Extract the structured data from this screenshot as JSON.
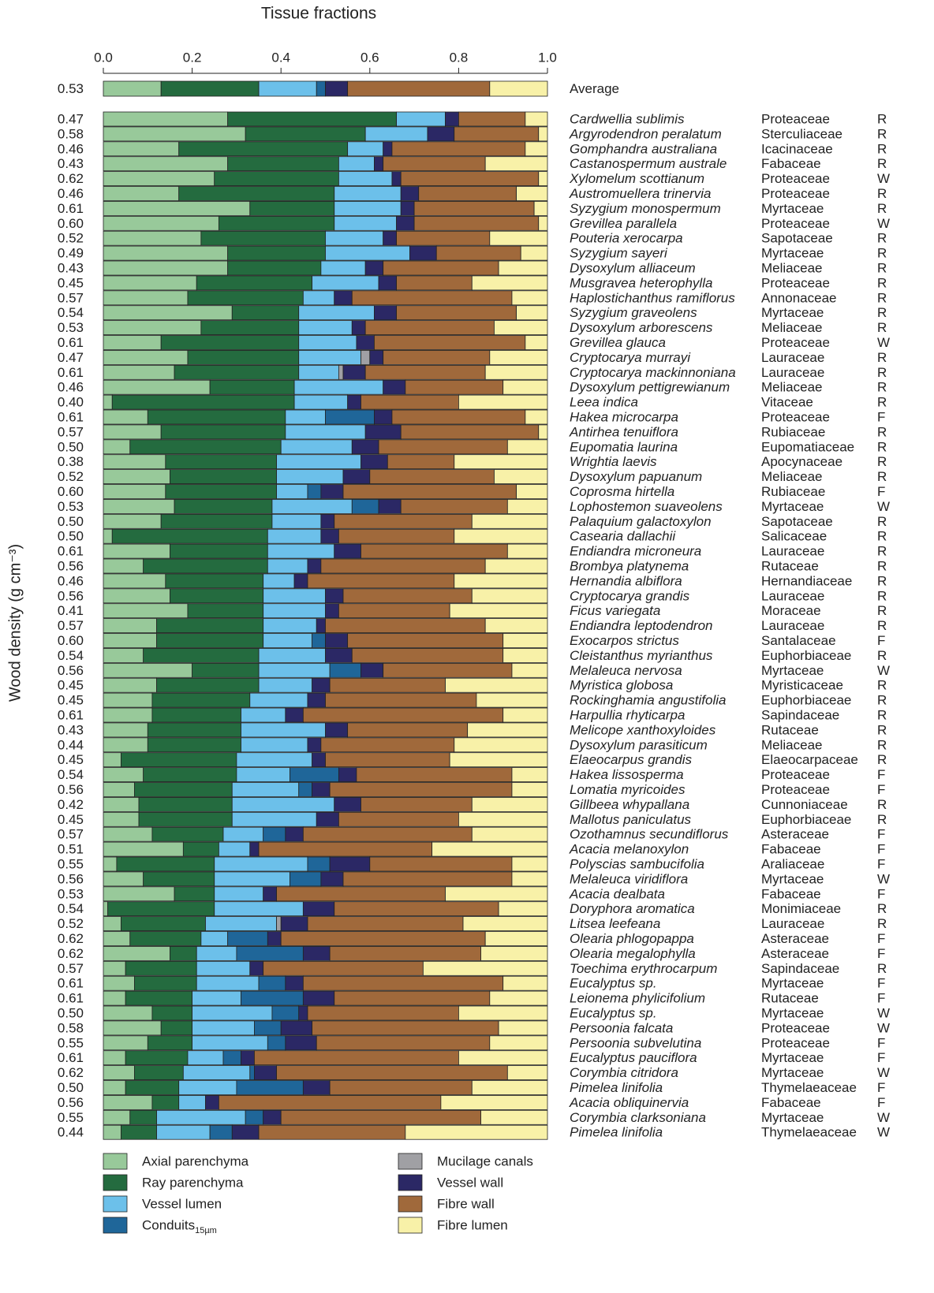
{
  "chart_data": {
    "type": "stacked-hbar",
    "title": "Tissue fractions",
    "y_label": "Wood density (g cm⁻³)",
    "xlim": [
      0,
      1
    ],
    "xticks": [
      {
        "value": 0,
        "label": "0.0"
      },
      0.2,
      0.4,
      0.6,
      0.8,
      {
        "value": 1,
        "label": "1.0"
      }
    ],
    "average": {
      "label": "Average",
      "density": "0.53",
      "values": [
        0.13,
        0.22,
        0.13,
        0.02,
        0,
        0.05,
        0.32,
        0.13
      ]
    },
    "categories": [
      "Cardwellia sublimis",
      "Argyrodendron peralatum",
      "Gomphandra australiana",
      "Castanospermum australe",
      "Xylomelum scottianum",
      "Austromuellera trinervia",
      "Syzygium monospermum",
      "Grevillea parallela",
      "Pouteria xerocarpa",
      "Syzygium sayeri",
      "Dysoxylum alliaceum",
      "Musgravea heterophylla",
      "Haplostichanthus ramiflorus",
      "Syzygium graveolens",
      "Dysoxylum arborescens",
      "Grevillea glauca",
      "Cryptocarya murrayi",
      "Cryptocarya mackinnoniana",
      "Dysoxylum pettigrewianum",
      "Leea indica",
      "Hakea microcarpa",
      "Antirhea tenuiflora",
      "Eupomatia laurina",
      "Wrightia laevis",
      "Dysoxylum papuanum",
      "Coprosma hirtella",
      "Lophostemon suaveolens",
      "Palaquium galactoxylon",
      "Casearia dallachii",
      "Endiandra microneura",
      "Brombya platynema",
      "Hernandia albiflora",
      "Cryptocarya grandis",
      "Ficus variegata",
      "Endiandra leptodendron",
      "Exocarpos strictus",
      "Cleistanthus myrianthus",
      "Melaleuca nervosa",
      "Myristica globosa",
      "Rockinghamia angustifolia",
      "Harpullia rhyticarpa",
      "Melicope xanthoxyloides",
      "Dysoxylum parasiticum",
      "Elaeocarpus grandis",
      "Hakea lissosperma",
      "Lomatia myricoides",
      "Gillbeea whypallana",
      "Mallotus paniculatus",
      "Ozothamnus secundiflorus",
      "Acacia melanoxylon",
      "Polyscias sambucifolia",
      "Melaleuca viridiflora",
      "Acacia dealbata",
      "Doryphora aromatica",
      "Litsea leefeana",
      "Olearia phlogopappa",
      "Olearia megalophylla",
      "Toechima erythrocarpum",
      "Eucalyptus sp.",
      "Leionema phylicifolium",
      "Eucalyptus sp.",
      "Persoonia falcata",
      "Persoonia subvelutina",
      "Eucalyptus pauciflora",
      "Corymbia citridora",
      "Pimelea linifolia",
      "Acacia obliquinervia",
      "Corymbia clarksoniana",
      "Pimelea linifolia"
    ],
    "families": [
      "Proteaceae",
      "Sterculiaceae",
      "Icacinaceae",
      "Fabaceae",
      "Proteaceae",
      "Proteaceae",
      "Myrtaceae",
      "Proteaceae",
      "Sapotaceae",
      "Myrtaceae",
      "Meliaceae",
      "Proteaceae",
      "Annonaceae",
      "Myrtaceae",
      "Meliaceae",
      "Proteaceae",
      "Lauraceae",
      "Lauraceae",
      "Meliaceae",
      "Vitaceae",
      "Proteaceae",
      "Rubiaceae",
      "Eupomatiaceae",
      "Apocynaceae",
      "Meliaceae",
      "Rubiaceae",
      "Myrtaceae",
      "Sapotaceae",
      "Salicaceae",
      "Lauraceae",
      "Rutaceae",
      "Hernandiaceae",
      "Lauraceae",
      "Moraceae",
      "Lauraceae",
      "Santalaceae",
      "Euphorbiaceae",
      "Myrtaceae",
      "Myristicaceae",
      "Euphorbiaceae",
      "Sapindaceae",
      "Rutaceae",
      "Meliaceae",
      "Elaeocarpaceae",
      "Proteaceae",
      "Proteaceae",
      "Cunnoniaceae",
      "Euphorbiaceae",
      "Asteraceae",
      "Fabaceae",
      "Araliaceae",
      "Myrtaceae",
      "Fabaceae",
      "Monimiaceae",
      "Lauraceae",
      "Asteraceae",
      "Asteraceae",
      "Sapindaceae",
      "Myrtaceae",
      "Rutaceae",
      "Myrtaceae",
      "Proteaceae",
      "Proteaceae",
      "Myrtaceae",
      "Myrtaceae",
      "Thymelaeaceae",
      "Fabaceae",
      "Myrtaceae",
      "Thymelaeaceae"
    ],
    "habitats": [
      "R",
      "R",
      "R",
      "R",
      "W",
      "R",
      "R",
      "W",
      "R",
      "R",
      "R",
      "R",
      "R",
      "R",
      "R",
      "W",
      "R",
      "R",
      "R",
      "R",
      "F",
      "R",
      "R",
      "R",
      "R",
      "F",
      "W",
      "R",
      "R",
      "R",
      "R",
      "R",
      "R",
      "R",
      "R",
      "F",
      "R",
      "W",
      "R",
      "R",
      "R",
      "R",
      "R",
      "R",
      "F",
      "F",
      "R",
      "R",
      "F",
      "F",
      "F",
      "W",
      "F",
      "R",
      "R",
      "F",
      "F",
      "R",
      "F",
      "F",
      "W",
      "W",
      "F",
      "F",
      "W",
      "F",
      "F",
      "W",
      "W"
    ],
    "densities": [
      "0.47",
      "0.58",
      "0.46",
      "0.43",
      "0.62",
      "0.46",
      "0.61",
      "0.60",
      "0.52",
      "0.49",
      "0.43",
      "0.45",
      "0.57",
      "0.54",
      "0.53",
      "0.61",
      "0.47",
      "0.61",
      "0.46",
      "0.40",
      "0.61",
      "0.57",
      "0.50",
      "0.38",
      "0.52",
      "0.60",
      "0.53",
      "0.50",
      "0.50",
      "0.61",
      "0.56",
      "0.46",
      "0.56",
      "0.41",
      "0.57",
      "0.60",
      "0.54",
      "0.56",
      "0.45",
      "0.45",
      "0.61",
      "0.43",
      "0.44",
      "0.45",
      "0.54",
      "0.56",
      "0.42",
      "0.45",
      "0.57",
      "0.51",
      "0.55",
      "0.56",
      "0.53",
      "0.54",
      "0.52",
      "0.62",
      "0.62",
      "0.57",
      "0.61",
      "0.61",
      "0.50",
      "0.58",
      "0.55",
      "0.61",
      "0.62",
      "0.50",
      "0.56",
      "0.55",
      "0.44"
    ],
    "series": [
      {
        "name": "Axial parenchyma",
        "color": "#98c99a",
        "values": [
          0.28,
          0.32,
          0.17,
          0.28,
          0.25,
          0.17,
          0.33,
          0.26,
          0.22,
          0.28,
          0.28,
          0.21,
          0.19,
          0.29,
          0.22,
          0.13,
          0.19,
          0.16,
          0.24,
          0.02,
          0.1,
          0.13,
          0.06,
          0.14,
          0.15,
          0.14,
          0.16,
          0.13,
          0.02,
          0.15,
          0.09,
          0.14,
          0.15,
          0.19,
          0.12,
          0.12,
          0.09,
          0.2,
          0.12,
          0.11,
          0.11,
          0.1,
          0.1,
          0.04,
          0.09,
          0.07,
          0.08,
          0.08,
          0.11,
          0.18,
          0.03,
          0.09,
          0.16,
          0.01,
          0.04,
          0.06,
          0.15,
          0.05,
          0.07,
          0.05,
          0.11,
          0.13,
          0.1,
          0.05,
          0.07,
          0.05,
          0.11,
          0.06,
          0.04
        ]
      },
      {
        "name": "Ray parenchyma",
        "color": "#246b3f",
        "values": [
          0.38,
          0.27,
          0.38,
          0.25,
          0.28,
          0.35,
          0.19,
          0.26,
          0.28,
          0.22,
          0.21,
          0.26,
          0.26,
          0.15,
          0.22,
          0.31,
          0.25,
          0.28,
          0.19,
          0.41,
          0.31,
          0.28,
          0.34,
          0.25,
          0.24,
          0.25,
          0.22,
          0.25,
          0.35,
          0.22,
          0.28,
          0.22,
          0.21,
          0.17,
          0.24,
          0.24,
          0.26,
          0.15,
          0.23,
          0.22,
          0.2,
          0.21,
          0.21,
          0.26,
          0.21,
          0.22,
          0.21,
          0.21,
          0.16,
          0.08,
          0.22,
          0.16,
          0.09,
          0.24,
          0.19,
          0.16,
          0.06,
          0.16,
          0.14,
          0.15,
          0.09,
          0.07,
          0.1,
          0.14,
          0.11,
          0.12,
          0.06,
          0.06,
          0.08
        ]
      },
      {
        "name": "Vessel lumen",
        "color": "#6cc0ea",
        "values": [
          0.11,
          0.14,
          0.08,
          0.08,
          0.12,
          0.15,
          0.15,
          0.14,
          0.13,
          0.19,
          0.1,
          0.15,
          0.07,
          0.17,
          0.12,
          0.13,
          0.14,
          0.09,
          0.2,
          0.12,
          0.09,
          0.18,
          0.16,
          0.19,
          0.15,
          0.07,
          0.18,
          0.11,
          0.12,
          0.15,
          0.09,
          0.07,
          0.14,
          0.14,
          0.12,
          0.11,
          0.15,
          0.16,
          0.12,
          0.13,
          0.1,
          0.19,
          0.15,
          0.17,
          0.12,
          0.15,
          0.23,
          0.19,
          0.09,
          0.07,
          0.21,
          0.17,
          0.11,
          0.2,
          0.16,
          0.06,
          0.09,
          0.12,
          0.14,
          0.11,
          0.18,
          0.14,
          0.17,
          0.08,
          0.15,
          0.13,
          0.06,
          0.2,
          0.12
        ]
      },
      {
        "name": "Conduits",
        "name_subscript": "15µm",
        "color": "#1f6699",
        "values": [
          0,
          0,
          0,
          0,
          0,
          0,
          0,
          0,
          0,
          0,
          0,
          0,
          0,
          0,
          0,
          0,
          0,
          0,
          0,
          0,
          0.11,
          0,
          0,
          0,
          0,
          0.03,
          0.06,
          0,
          0,
          0,
          0,
          0,
          0,
          0,
          0,
          0.03,
          0,
          0.07,
          0,
          0,
          0,
          0,
          0,
          0,
          0.11,
          0.03,
          0,
          0,
          0.05,
          0,
          0.05,
          0.07,
          0,
          0,
          0,
          0.09,
          0.15,
          0,
          0.06,
          0.14,
          0.06,
          0.06,
          0.04,
          0.04,
          0.01,
          0.15,
          0,
          0.04,
          0.05
        ]
      },
      {
        "name": "Mucilage canals",
        "color": "#a0a0a4",
        "values": [
          0,
          0,
          0,
          0,
          0,
          0,
          0,
          0,
          0,
          0,
          0,
          0,
          0,
          0,
          0,
          0,
          0.02,
          0.01,
          0,
          0,
          0,
          0,
          0,
          0,
          0,
          0,
          0,
          0,
          0,
          0,
          0,
          0,
          0,
          0,
          0,
          0,
          0,
          0,
          0,
          0,
          0,
          0,
          0,
          0,
          0,
          0,
          0,
          0,
          0,
          0,
          0,
          0,
          0,
          0,
          0.01,
          0,
          0,
          0,
          0,
          0,
          0,
          0,
          0,
          0,
          0,
          0,
          0,
          0,
          0
        ]
      },
      {
        "name": "Vessel wall",
        "color": "#2b2865",
        "values": [
          0.03,
          0.06,
          0.02,
          0.02,
          0.02,
          0.04,
          0.03,
          0.04,
          0.03,
          0.06,
          0.04,
          0.04,
          0.04,
          0.05,
          0.03,
          0.04,
          0.03,
          0.05,
          0.05,
          0.03,
          0.04,
          0.08,
          0.06,
          0.06,
          0.06,
          0.05,
          0.05,
          0.03,
          0.04,
          0.06,
          0.03,
          0.03,
          0.04,
          0.03,
          0.02,
          0.05,
          0.06,
          0.05,
          0.04,
          0.04,
          0.04,
          0.05,
          0.03,
          0.03,
          0.04,
          0.04,
          0.06,
          0.05,
          0.04,
          0.02,
          0.09,
          0.05,
          0.03,
          0.07,
          0.06,
          0.03,
          0.06,
          0.03,
          0.04,
          0.07,
          0.02,
          0.07,
          0.07,
          0.03,
          0.05,
          0.06,
          0.03,
          0.04,
          0.06
        ]
      },
      {
        "name": "Fibre wall",
        "color": "#a0693b",
        "values": [
          0.15,
          0.19,
          0.3,
          0.23,
          0.31,
          0.22,
          0.27,
          0.28,
          0.21,
          0.19,
          0.26,
          0.17,
          0.36,
          0.27,
          0.29,
          0.34,
          0.24,
          0.27,
          0.22,
          0.22,
          0.3,
          0.31,
          0.29,
          0.15,
          0.28,
          0.39,
          0.24,
          0.31,
          0.26,
          0.33,
          0.37,
          0.33,
          0.29,
          0.25,
          0.36,
          0.35,
          0.34,
          0.29,
          0.26,
          0.34,
          0.45,
          0.27,
          0.3,
          0.28,
          0.35,
          0.41,
          0.25,
          0.27,
          0.38,
          0.39,
          0.32,
          0.38,
          0.38,
          0.37,
          0.35,
          0.46,
          0.34,
          0.36,
          0.45,
          0.35,
          0.34,
          0.42,
          0.39,
          0.46,
          0.52,
          0.32,
          0.5,
          0.45,
          0.33
        ]
      },
      {
        "name": "Fibre lumen",
        "color": "#f8f1a8",
        "values": [
          0.05,
          0.02,
          0.05,
          0.14,
          0.02,
          0.07,
          0.03,
          0.02,
          0.13,
          0.06,
          0.11,
          0.17,
          0.08,
          0.07,
          0.12,
          0.05,
          0.13,
          0.14,
          0.1,
          0.2,
          0.05,
          0.02,
          0.09,
          0.21,
          0.12,
          0.07,
          0.09,
          0.17,
          0.21,
          0.09,
          0.14,
          0.21,
          0.17,
          0.22,
          0.14,
          0.1,
          0.1,
          0.08,
          0.23,
          0.16,
          0.1,
          0.18,
          0.21,
          0.22,
          0.08,
          0.08,
          0.17,
          0.2,
          0.17,
          0.26,
          0.08,
          0.08,
          0.23,
          0.11,
          0.19,
          0.14,
          0.15,
          0.28,
          0.1,
          0.13,
          0.2,
          0.11,
          0.13,
          0.2,
          0.09,
          0.17,
          0.24,
          0.15,
          0.32
        ]
      }
    ]
  }
}
